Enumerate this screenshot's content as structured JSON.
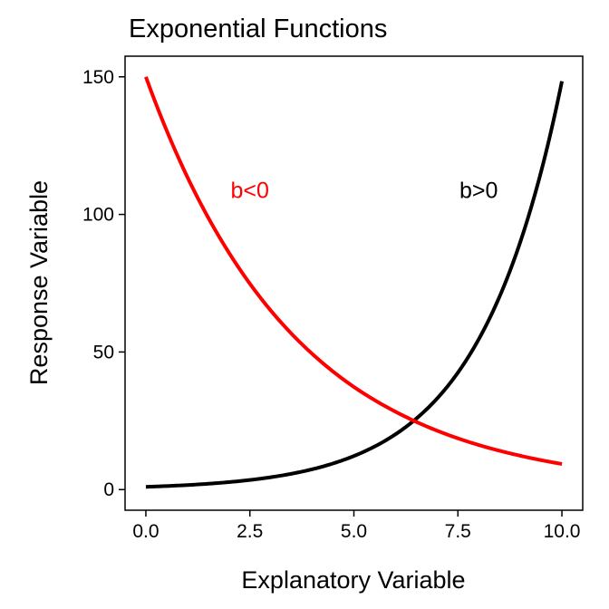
{
  "chart_data": {
    "type": "line",
    "title": "Exponential Functions",
    "xlabel": "Explanatory Variable",
    "ylabel": "Response Variable",
    "xlim": [
      -0.5,
      10.5
    ],
    "ylim": [
      -7.5,
      157.5
    ],
    "x_ticks": [
      0,
      2.5,
      5,
      7.5,
      10
    ],
    "x_tick_labels": [
      "0.0",
      "2.5",
      "5.0",
      "7.5",
      "10.0"
    ],
    "y_ticks": [
      0,
      50,
      100,
      150
    ],
    "y_tick_labels": [
      "0",
      "50",
      "100",
      "150"
    ],
    "grid": false,
    "series": [
      {
        "color": "#000000",
        "x": [
          0,
          1,
          2,
          3,
          4,
          5,
          6,
          7,
          8,
          9,
          10
        ],
        "y": [
          1,
          1.65,
          2.72,
          4.48,
          7.39,
          12.2,
          20.1,
          33.1,
          54.6,
          90.0,
          148.4
        ]
      },
      {
        "color": "#ff0000",
        "x": [
          0,
          1,
          2,
          3,
          4,
          5,
          6,
          7,
          8,
          9,
          10
        ],
        "y": [
          150,
          113.5,
          86.0,
          65.1,
          49.3,
          37.3,
          28.3,
          21.4,
          16.2,
          12.3,
          9.3
        ]
      }
    ],
    "annotations": [
      {
        "text": "b<0",
        "x": 2.5,
        "y": 109,
        "color": "#ff0000"
      },
      {
        "text": "b>0",
        "x": 8.0,
        "y": 109,
        "color": "#000000"
      }
    ]
  }
}
